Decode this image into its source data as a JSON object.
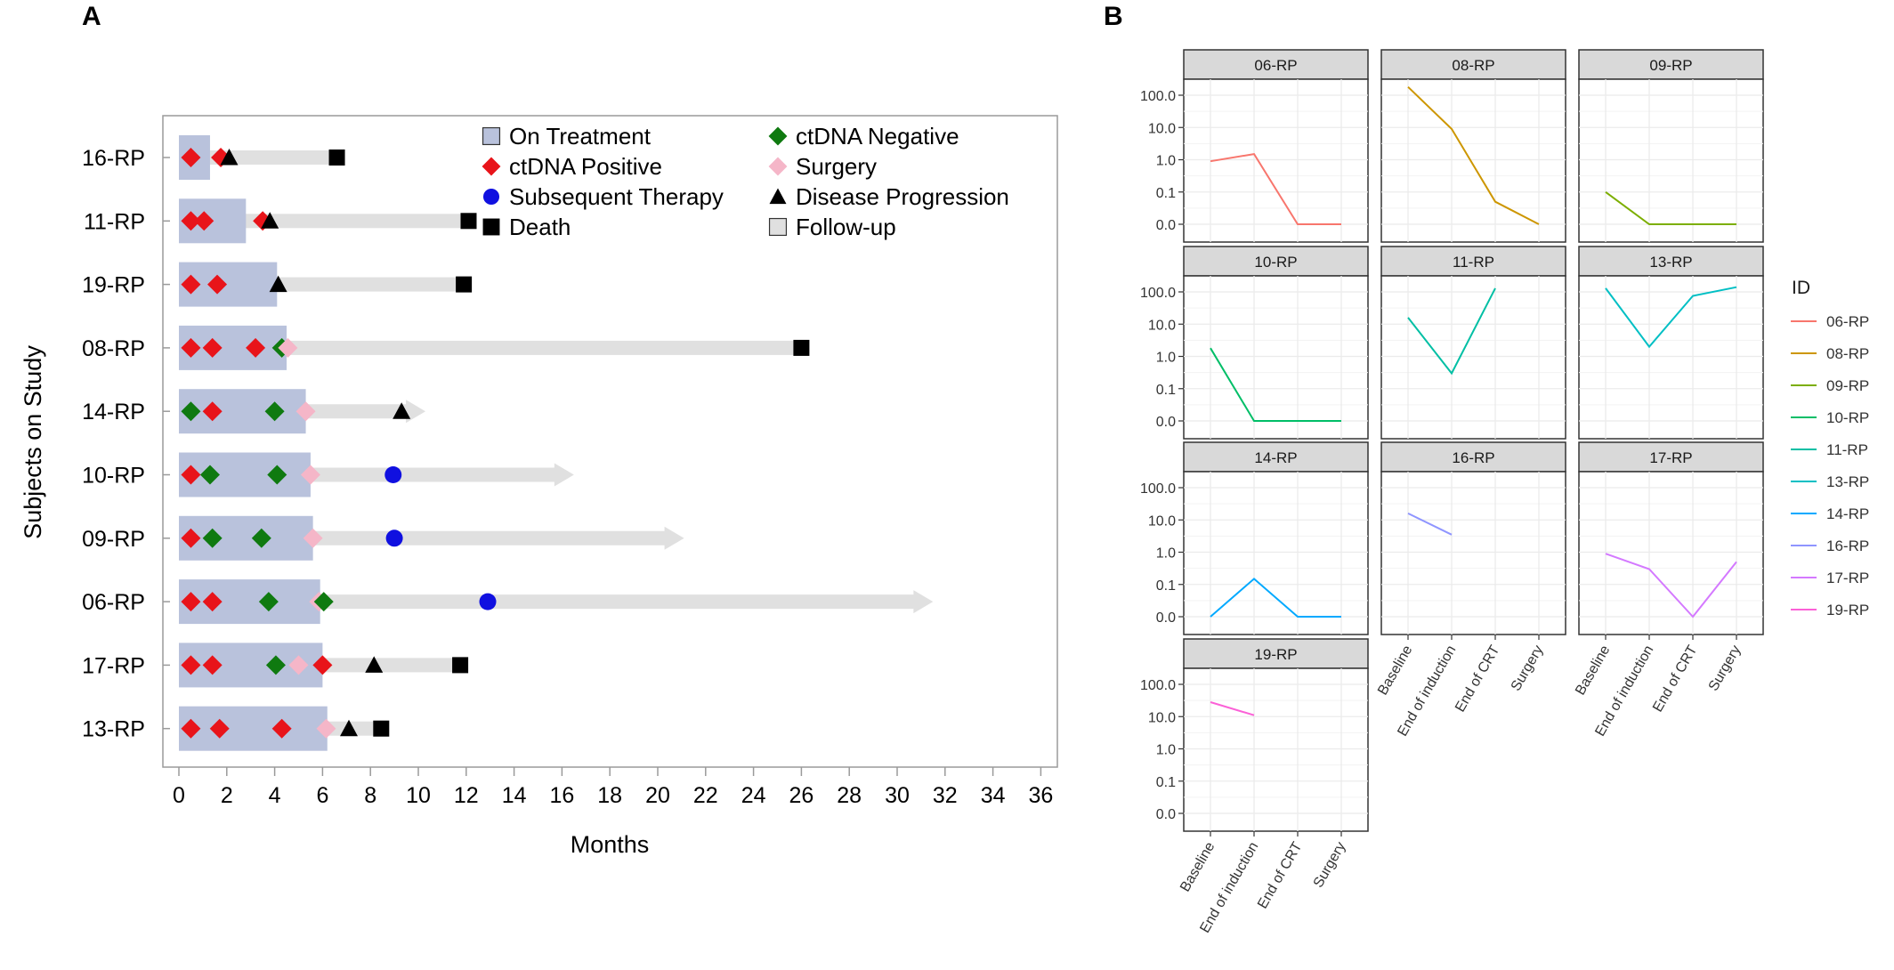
{
  "panel_a": {
    "letter": "A",
    "chart_data": {
      "type": "swimmer",
      "xlabel": "Months",
      "ylabel": "Subjects on Study",
      "xlim": [
        0,
        36
      ],
      "xticks": [
        0,
        2,
        4,
        6,
        8,
        10,
        12,
        14,
        16,
        18,
        20,
        22,
        24,
        26,
        28,
        30,
        32,
        34,
        36
      ],
      "legend_position": "top-right",
      "legend": [
        {
          "key": "on_treatment",
          "label": "On Treatment",
          "shape": "square",
          "color": "#b9c2dc"
        },
        {
          "key": "ctdna_positive",
          "label": "ctDNA Positive",
          "shape": "diamond",
          "color": "#e8141a"
        },
        {
          "key": "subsequent_therapy",
          "label": "Subsequent Therapy",
          "shape": "circle",
          "color": "#1010e0"
        },
        {
          "key": "death",
          "label": "Death",
          "shape": "square",
          "color": "#000000"
        },
        {
          "key": "ctdna_negative",
          "label": "ctDNA Negative",
          "shape": "diamond",
          "color": "#0f7a10"
        },
        {
          "key": "surgery",
          "label": "Surgery",
          "shape": "diamond",
          "color": "#f5b6c8"
        },
        {
          "key": "disease_progression",
          "label": "Disease Progression",
          "shape": "triangle",
          "color": "#000000"
        },
        {
          "key": "follow_up",
          "label": "Follow-up",
          "shape": "square",
          "color": "#e0e0e0"
        }
      ],
      "subjects": [
        {
          "id": "16-RP",
          "treatment": 1.3,
          "followup": 6.6,
          "arrow": false,
          "events": [
            {
              "t": 0.5,
              "type": "ctdna_positive"
            },
            {
              "t": 1.75,
              "type": "ctdna_positive"
            },
            {
              "t": 2.1,
              "type": "disease_progression"
            },
            {
              "t": 6.6,
              "type": "death"
            }
          ]
        },
        {
          "id": "11-RP",
          "treatment": 2.8,
          "followup": 12.1,
          "arrow": false,
          "events": [
            {
              "t": 0.5,
              "type": "ctdna_positive"
            },
            {
              "t": 1.05,
              "type": "ctdna_positive"
            },
            {
              "t": 3.5,
              "type": "ctdna_positive"
            },
            {
              "t": 3.8,
              "type": "disease_progression"
            },
            {
              "t": 12.1,
              "type": "death"
            }
          ]
        },
        {
          "id": "19-RP",
          "treatment": 4.1,
          "followup": 11.9,
          "arrow": false,
          "events": [
            {
              "t": 0.5,
              "type": "ctdna_positive"
            },
            {
              "t": 1.6,
              "type": "ctdna_positive"
            },
            {
              "t": 4.15,
              "type": "disease_progression"
            },
            {
              "t": 11.9,
              "type": "death"
            }
          ]
        },
        {
          "id": "08-RP",
          "treatment": 4.5,
          "followup": 26.0,
          "arrow": false,
          "events": [
            {
              "t": 0.5,
              "type": "ctdna_positive"
            },
            {
              "t": 1.4,
              "type": "ctdna_positive"
            },
            {
              "t": 3.2,
              "type": "ctdna_positive"
            },
            {
              "t": 4.3,
              "type": "ctdna_negative"
            },
            {
              "t": 4.55,
              "type": "surgery"
            },
            {
              "t": 26.0,
              "type": "death"
            }
          ]
        },
        {
          "id": "14-RP",
          "treatment": 5.3,
          "followup": 10.3,
          "arrow": true,
          "events": [
            {
              "t": 0.5,
              "type": "ctdna_negative"
            },
            {
              "t": 1.4,
              "type": "ctdna_positive"
            },
            {
              "t": 4.0,
              "type": "ctdna_negative"
            },
            {
              "t": 5.3,
              "type": "surgery"
            },
            {
              "t": 9.3,
              "type": "disease_progression"
            }
          ]
        },
        {
          "id": "10-RP",
          "treatment": 5.5,
          "followup": 16.5,
          "arrow": true,
          "events": [
            {
              "t": 0.5,
              "type": "ctdna_positive"
            },
            {
              "t": 1.3,
              "type": "ctdna_negative"
            },
            {
              "t": 4.1,
              "type": "ctdna_negative"
            },
            {
              "t": 5.5,
              "type": "surgery"
            },
            {
              "t": 8.95,
              "type": "subsequent_therapy"
            }
          ]
        },
        {
          "id": "09-RP",
          "treatment": 5.6,
          "followup": 21.1,
          "arrow": true,
          "events": [
            {
              "t": 0.5,
              "type": "ctdna_positive"
            },
            {
              "t": 1.4,
              "type": "ctdna_negative"
            },
            {
              "t": 3.45,
              "type": "ctdna_negative"
            },
            {
              "t": 5.6,
              "type": "surgery"
            },
            {
              "t": 9.0,
              "type": "subsequent_therapy"
            }
          ]
        },
        {
          "id": "06-RP",
          "treatment": 5.9,
          "followup": 31.5,
          "arrow": true,
          "events": [
            {
              "t": 0.5,
              "type": "ctdna_positive"
            },
            {
              "t": 1.4,
              "type": "ctdna_positive"
            },
            {
              "t": 3.75,
              "type": "ctdna_negative"
            },
            {
              "t": 5.85,
              "type": "surgery"
            },
            {
              "t": 6.05,
              "type": "ctdna_negative"
            },
            {
              "t": 12.9,
              "type": "subsequent_therapy"
            }
          ]
        },
        {
          "id": "17-RP",
          "treatment": 6.0,
          "followup": 11.8,
          "arrow": false,
          "events": [
            {
              "t": 0.5,
              "type": "ctdna_positive"
            },
            {
              "t": 1.4,
              "type": "ctdna_positive"
            },
            {
              "t": 4.05,
              "type": "ctdna_negative"
            },
            {
              "t": 5.0,
              "type": "surgery"
            },
            {
              "t": 6.0,
              "type": "ctdna_positive"
            },
            {
              "t": 8.15,
              "type": "disease_progression"
            },
            {
              "t": 11.75,
              "type": "death"
            }
          ]
        },
        {
          "id": "13-RP",
          "treatment": 6.2,
          "followup": 8.4,
          "arrow": false,
          "events": [
            {
              "t": 0.5,
              "type": "ctdna_positive"
            },
            {
              "t": 1.7,
              "type": "ctdna_positive"
            },
            {
              "t": 4.3,
              "type": "ctdna_positive"
            },
            {
              "t": 6.15,
              "type": "surgery"
            },
            {
              "t": 7.1,
              "type": "disease_progression"
            },
            {
              "t": 8.45,
              "type": "death"
            }
          ]
        }
      ]
    }
  },
  "panel_b": {
    "letter": "B",
    "chart_data": {
      "type": "line",
      "facet": "small-multiples",
      "categories": [
        "Baseline",
        "End of induction",
        "End of CRT",
        "Surgery"
      ],
      "yticks": [
        "100.0",
        "10.0",
        "1.0",
        "0.1",
        "0.0"
      ],
      "legend_title": "ID",
      "legend_position": "right",
      "series": [
        {
          "name": "06-RP",
          "color": "#f8766d",
          "values": [
            0.9,
            1.5,
            0.0,
            0.0
          ]
        },
        {
          "name": "08-RP",
          "color": "#cd9600",
          "values": [
            180,
            9,
            0.05,
            0.0
          ]
        },
        {
          "name": "09-RP",
          "color": "#7cae00",
          "values": [
            0.1,
            0.0,
            0.0,
            0.0
          ]
        },
        {
          "name": "10-RP",
          "color": "#00be67",
          "values": [
            1.8,
            0.0,
            0.0,
            0.0
          ]
        },
        {
          "name": "11-RP",
          "color": "#00bfa4",
          "values": [
            16,
            0.3,
            130,
            null
          ]
        },
        {
          "name": "13-RP",
          "color": "#00bfc4",
          "values": [
            130,
            2,
            75,
            140
          ]
        },
        {
          "name": "14-RP",
          "color": "#00a9ff",
          "values": [
            0.0,
            0.15,
            0.0,
            0.0
          ]
        },
        {
          "name": "16-RP",
          "color": "#8f95ff",
          "values": [
            16,
            3.5,
            null,
            null
          ]
        },
        {
          "name": "17-RP",
          "color": "#d479ff",
          "values": [
            0.9,
            0.3,
            0.0,
            0.5
          ]
        },
        {
          "name": "19-RP",
          "color": "#fb61d7",
          "values": [
            28,
            11,
            null,
            null
          ]
        }
      ]
    }
  }
}
